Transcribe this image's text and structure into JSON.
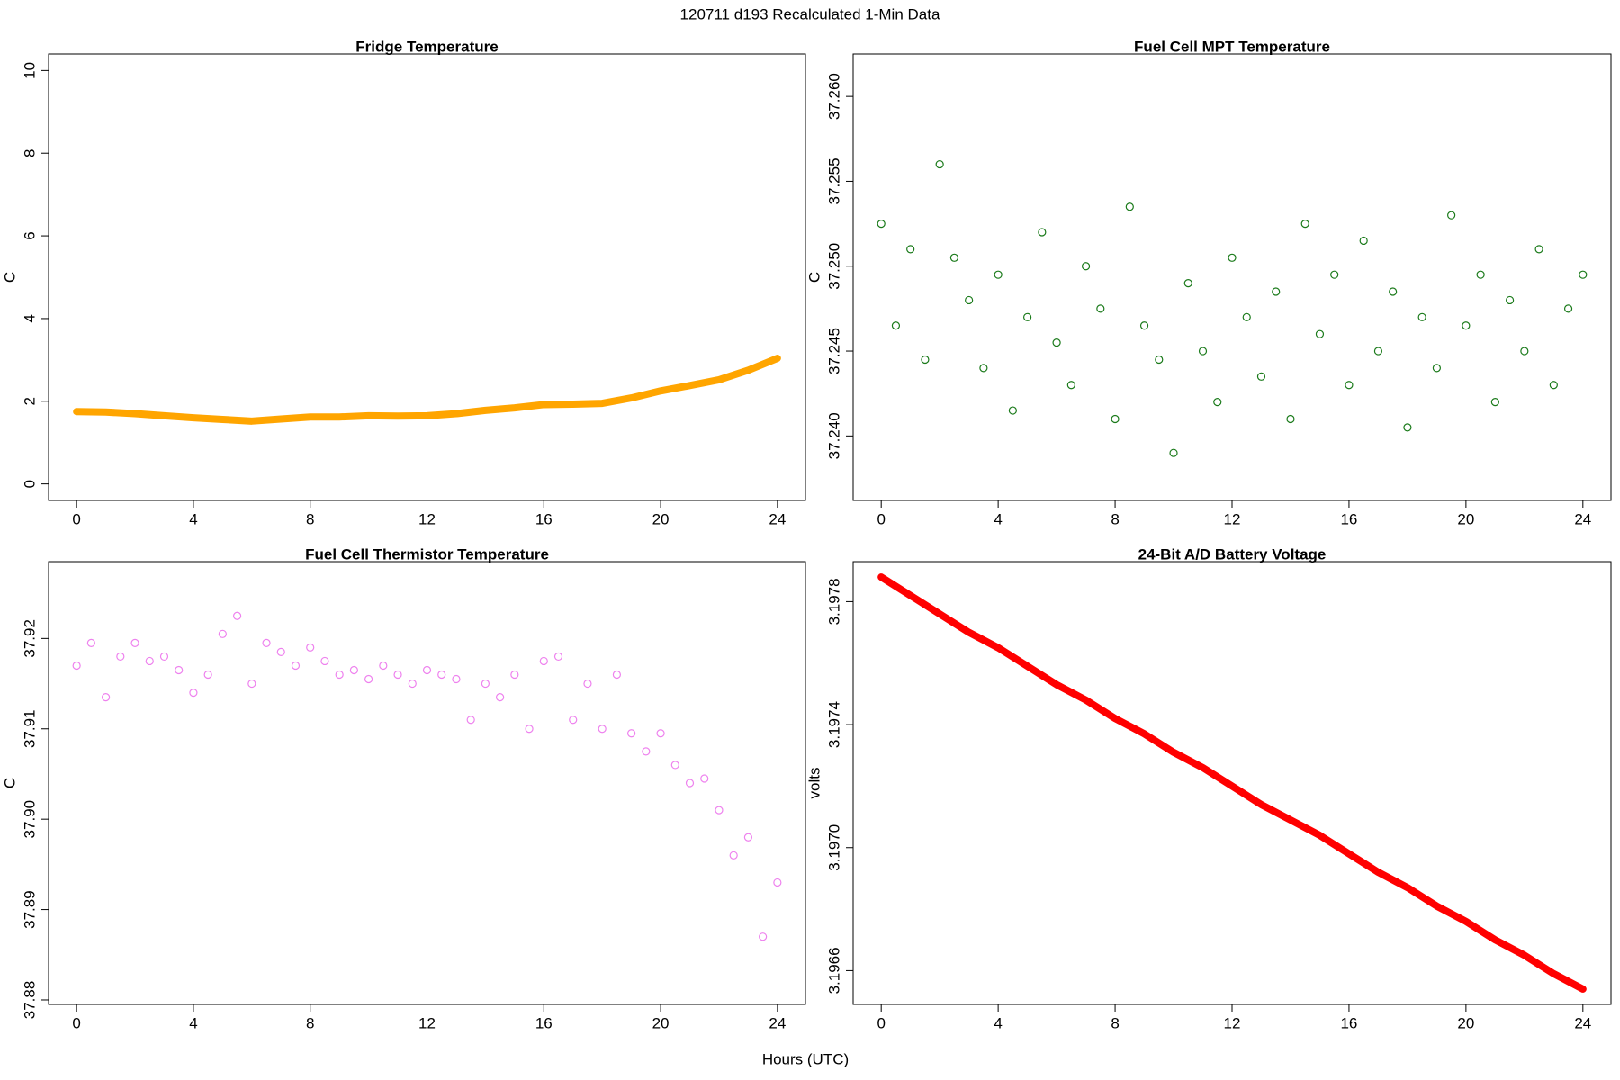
{
  "title": "120711   d193   Recalculated 1-Min Data",
  "xlabel": "Hours (UTC)",
  "chart_data": [
    {
      "type": "line",
      "title": "Fridge Temperature",
      "ylabel": "C",
      "color": "#ffa500",
      "x": [
        0,
        1,
        2,
        3,
        4,
        5,
        6,
        7,
        8,
        9,
        10,
        11,
        12,
        13,
        14,
        15,
        16,
        17,
        18,
        19,
        20,
        21,
        22,
        23,
        24
      ],
      "values": [
        1.75,
        1.74,
        1.7,
        1.65,
        1.6,
        1.56,
        1.52,
        1.57,
        1.62,
        1.62,
        1.65,
        1.64,
        1.65,
        1.7,
        1.78,
        1.84,
        1.92,
        1.93,
        1.95,
        2.08,
        2.25,
        2.38,
        2.52,
        2.75,
        3.04
      ],
      "xlim": [
        -0.96,
        24.96
      ],
      "ylim": [
        -0.4,
        10.4
      ],
      "xticks": [
        0,
        4,
        8,
        12,
        16,
        20,
        24
      ],
      "yticks": [
        0,
        2,
        4,
        6,
        8,
        10
      ]
    },
    {
      "type": "scatter",
      "title": "Fuel Cell MPT Temperature",
      "ylabel": "C",
      "color": "#1a7a1a",
      "x": [
        0,
        0.5,
        1,
        1.5,
        2,
        2.5,
        3,
        3.5,
        4,
        4.5,
        5,
        5.5,
        6,
        6.5,
        7,
        7.5,
        8,
        8.5,
        9,
        9.5,
        10,
        10.5,
        11,
        11.5,
        12,
        12.5,
        13,
        13.5,
        14,
        14.5,
        15,
        15.5,
        16,
        16.5,
        17,
        17.5,
        18,
        18.5,
        19,
        19.5,
        20,
        20.5,
        21,
        21.5,
        22,
        22.5,
        23,
        23.5,
        24
      ],
      "values": [
        37.2525,
        37.2465,
        37.251,
        37.2445,
        37.256,
        37.2505,
        37.248,
        37.244,
        37.2495,
        37.2415,
        37.247,
        37.252,
        37.2455,
        37.243,
        37.25,
        37.2475,
        37.241,
        37.2535,
        37.2465,
        37.2445,
        37.239,
        37.249,
        37.245,
        37.242,
        37.2505,
        37.247,
        37.2435,
        37.2485,
        37.241,
        37.2525,
        37.246,
        37.2495,
        37.243,
        37.2515,
        37.245,
        37.2485,
        37.2405,
        37.247,
        37.244,
        37.253,
        37.2465,
        37.2495,
        37.242,
        37.248,
        37.245,
        37.251,
        37.243,
        37.2475,
        37.2495
      ],
      "xlim": [
        -0.96,
        24.96
      ],
      "ylim": [
        37.2362,
        37.2625
      ],
      "xticks": [
        0,
        4,
        8,
        12,
        16,
        20,
        24
      ],
      "yticks": [
        {
          "value": 37.24,
          "label": "37.240"
        },
        37.245,
        {
          "value": 37.25,
          "label": "37.250"
        },
        37.255,
        {
          "value": 37.26,
          "label": "37.260"
        }
      ]
    },
    {
      "type": "scatter",
      "title": "Fuel Cell Thermistor Temperature",
      "ylabel": "C",
      "color": "#ee82ee",
      "x": [
        0,
        0.5,
        1,
        1.5,
        2,
        2.5,
        3,
        3.5,
        4,
        4.5,
        5,
        5.5,
        6,
        6.5,
        7,
        7.5,
        8,
        8.5,
        9,
        9.5,
        10,
        10.5,
        11,
        11.5,
        12,
        12.5,
        13,
        13.5,
        14,
        14.5,
        15,
        15.5,
        16,
        16.5,
        17,
        17.5,
        18,
        18.5,
        19,
        19.5,
        20,
        20.5,
        21,
        21.5,
        22,
        22.5,
        23,
        23.5,
        24
      ],
      "values": [
        37.917,
        37.9195,
        37.9135,
        37.918,
        37.9195,
        37.9175,
        37.918,
        37.9165,
        37.914,
        37.916,
        37.9205,
        37.9225,
        37.915,
        37.9195,
        37.9185,
        37.917,
        37.919,
        37.9175,
        37.916,
        37.9165,
        37.9155,
        37.917,
        37.916,
        37.915,
        37.9165,
        37.916,
        37.9155,
        37.911,
        37.915,
        37.9135,
        37.916,
        37.91,
        37.9175,
        37.918,
        37.911,
        37.915,
        37.91,
        37.916,
        37.9095,
        37.9075,
        37.9095,
        37.906,
        37.904,
        37.9045,
        37.901,
        37.896,
        37.898,
        37.887,
        37.893
      ],
      "xlim": [
        -0.96,
        24.96
      ],
      "ylim": [
        37.8795,
        37.9285
      ],
      "xticks": [
        0,
        4,
        8,
        12,
        16,
        20,
        24
      ],
      "yticks": [
        37.88,
        37.89,
        {
          "value": 37.9,
          "label": "37.90"
        },
        37.91,
        37.92
      ]
    },
    {
      "type": "line",
      "title": "24-Bit A/D Battery Voltage",
      "ylabel": "volts",
      "color": "#ff0000",
      "x": [
        0,
        1,
        2,
        3,
        4,
        5,
        6,
        7,
        8,
        9,
        10,
        11,
        12,
        13,
        14,
        15,
        16,
        17,
        18,
        19,
        20,
        21,
        22,
        23,
        24
      ],
      "values": [
        3.19788,
        3.19782,
        3.19776,
        3.1977,
        3.19765,
        3.19759,
        3.19753,
        3.19748,
        3.19742,
        3.19737,
        3.19731,
        3.19726,
        3.1972,
        3.19714,
        3.19709,
        3.19704,
        3.19698,
        3.19692,
        3.19687,
        3.19681,
        3.19676,
        3.1967,
        3.19665,
        3.19659,
        3.19654
      ],
      "xlim": [
        -0.96,
        24.96
      ],
      "ylim": [
        3.19649,
        3.19793
      ],
      "xticks": [
        0,
        4,
        8,
        12,
        16,
        20,
        24
      ],
      "yticks": [
        3.1966,
        {
          "value": 3.197,
          "label": "3.1970"
        },
        3.1974,
        3.1978
      ]
    }
  ]
}
